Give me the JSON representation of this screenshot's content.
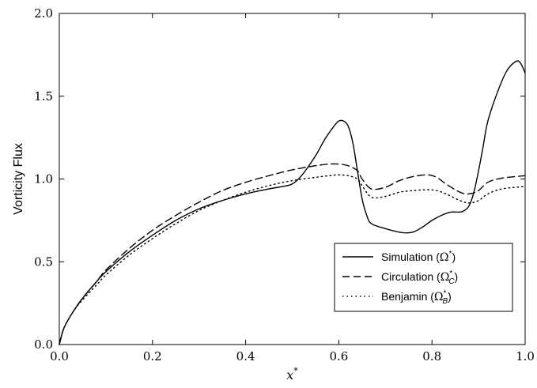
{
  "chart_data": {
    "type": "line",
    "title": "",
    "xlabel": "x*",
    "ylabel": "Vorticity Flux",
    "xlim": [
      0.0,
      1.0
    ],
    "ylim": [
      0.0,
      2.0
    ],
    "xticks": [
      "0.0",
      "0.2",
      "0.4",
      "0.6",
      "0.8",
      "1.0"
    ],
    "yticks": [
      "0.0",
      "0.5",
      "1.0",
      "1.5",
      "2.0"
    ],
    "grid": false,
    "legend_position": "lower-right",
    "series": [
      {
        "name": "Simulation (Ω*)",
        "style": "solid",
        "color": "#000000",
        "x": [
          0.0,
          0.01,
          0.03,
          0.05,
          0.08,
          0.1,
          0.15,
          0.2,
          0.25,
          0.3,
          0.35,
          0.4,
          0.45,
          0.48,
          0.5,
          0.52,
          0.55,
          0.57,
          0.59,
          0.6,
          0.61,
          0.62,
          0.63,
          0.64,
          0.65,
          0.66,
          0.67,
          0.7,
          0.72,
          0.74,
          0.76,
          0.78,
          0.8,
          0.82,
          0.84,
          0.86,
          0.87,
          0.88,
          0.89,
          0.9,
          0.91,
          0.92,
          0.94,
          0.96,
          0.98,
          0.99,
          1.0
        ],
        "y": [
          0.0,
          0.1,
          0.2,
          0.28,
          0.38,
          0.44,
          0.56,
          0.66,
          0.75,
          0.82,
          0.87,
          0.91,
          0.94,
          0.955,
          0.97,
          1.02,
          1.14,
          1.24,
          1.32,
          1.35,
          1.35,
          1.32,
          1.22,
          1.05,
          0.88,
          0.78,
          0.73,
          0.7,
          0.685,
          0.675,
          0.68,
          0.71,
          0.75,
          0.78,
          0.8,
          0.8,
          0.81,
          0.84,
          0.92,
          1.05,
          1.2,
          1.35,
          1.52,
          1.65,
          1.71,
          1.7,
          1.64
        ]
      },
      {
        "name": "Circulation (Ω*C)",
        "style": "dashed",
        "color": "#000000",
        "x": [
          0.0,
          0.01,
          0.03,
          0.05,
          0.08,
          0.1,
          0.15,
          0.2,
          0.25,
          0.3,
          0.35,
          0.4,
          0.45,
          0.5,
          0.55,
          0.58,
          0.6,
          0.62,
          0.64,
          0.65,
          0.67,
          0.7,
          0.73,
          0.76,
          0.79,
          0.81,
          0.83,
          0.86,
          0.88,
          0.9,
          0.92,
          0.95,
          1.0
        ],
        "y": [
          0.0,
          0.1,
          0.2,
          0.28,
          0.38,
          0.45,
          0.58,
          0.69,
          0.78,
          0.86,
          0.93,
          0.98,
          1.02,
          1.055,
          1.08,
          1.09,
          1.09,
          1.08,
          1.05,
          1.0,
          0.94,
          0.95,
          0.99,
          1.015,
          1.025,
          1.01,
          0.97,
          0.92,
          0.91,
          0.93,
          0.98,
          1.005,
          1.02
        ]
      },
      {
        "name": "Benjamin (Ω*B)",
        "style": "dotted",
        "color": "#000000",
        "x": [
          0.0,
          0.01,
          0.03,
          0.05,
          0.08,
          0.1,
          0.15,
          0.2,
          0.25,
          0.3,
          0.35,
          0.4,
          0.45,
          0.5,
          0.55,
          0.58,
          0.6,
          0.62,
          0.64,
          0.65,
          0.67,
          0.7,
          0.73,
          0.76,
          0.79,
          0.81,
          0.83,
          0.86,
          0.88,
          0.9,
          0.92,
          0.95,
          1.0
        ],
        "y": [
          0.0,
          0.1,
          0.2,
          0.27,
          0.36,
          0.42,
          0.54,
          0.64,
          0.73,
          0.81,
          0.87,
          0.92,
          0.96,
          0.99,
          1.01,
          1.02,
          1.025,
          1.02,
          1.0,
          0.96,
          0.89,
          0.895,
          0.92,
          0.93,
          0.935,
          0.93,
          0.91,
          0.87,
          0.855,
          0.87,
          0.91,
          0.94,
          0.955
        ]
      }
    ]
  }
}
